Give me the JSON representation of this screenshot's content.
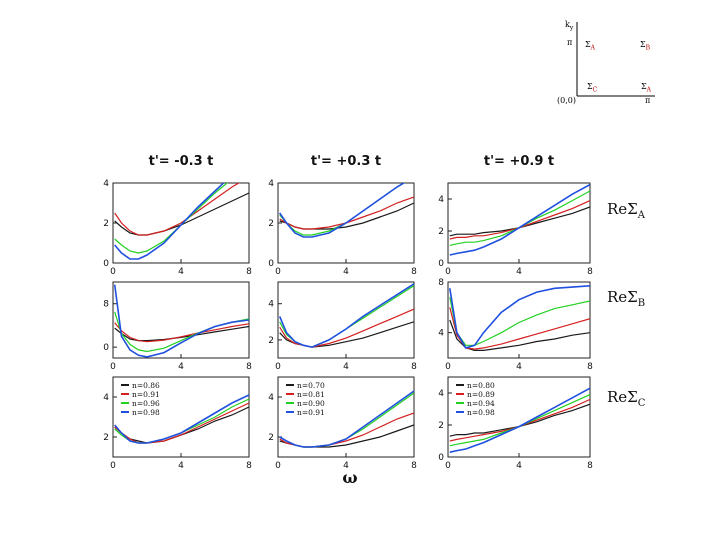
{
  "colors": {
    "black": "#1a1a1a",
    "red": "#d42020",
    "green": "#22d022",
    "blue": "#2050e0"
  },
  "inset": {
    "ky_label": "k",
    "ky_sub": "y",
    "pi_left": "π",
    "pi_bottom": "π",
    "origin": "(0,0)",
    "sigma_a": "Σ",
    "sigma_a_sub": "A",
    "sigma_b": "Σ",
    "sigma_b_sub": "B",
    "sigma_c": "Σ",
    "sigma_c_sub": "C",
    "sigma_a2": "Σ",
    "sigma_a2_sub": "A"
  },
  "columns": [
    "t'= -0.3 t",
    "t'= +0.3 t",
    "t'= +0.9 t"
  ],
  "rows": [
    "ReΣ_A",
    "ReΣ_B",
    "ReΣ_C"
  ],
  "row_label_main": "ReΣ",
  "row_label_subs": [
    "A",
    "B",
    "C"
  ],
  "xlabel": "ω",
  "legends": [
    [
      "n=0.86",
      "n=0.91",
      "n=0.96",
      "n=0.98"
    ],
    [
      "n=0.70",
      "n=0.81",
      "n=0.90",
      "n=0.91"
    ],
    [
      "n=0.80",
      "n=0.89",
      "n=0.94",
      "n=0.98"
    ]
  ],
  "chart_data": [
    {
      "type": "line",
      "panel": "row A, col 1",
      "xlim": [
        0,
        8
      ],
      "ylim": [
        0,
        4
      ],
      "xticks": [
        0,
        4,
        8
      ],
      "yticks": [
        0,
        2,
        4
      ],
      "x": [
        0.1,
        0.5,
        1,
        1.5,
        2,
        3,
        4,
        5,
        6,
        7,
        8
      ],
      "series": [
        {
          "values": [
            2.1,
            1.8,
            1.5,
            1.4,
            1.4,
            1.6,
            1.9,
            2.3,
            2.7,
            3.1,
            3.5
          ]
        },
        {
          "values": [
            2.5,
            2.0,
            1.6,
            1.4,
            1.4,
            1.6,
            2.0,
            2.6,
            3.2,
            3.8,
            4.3
          ]
        },
        {
          "values": [
            1.2,
            0.9,
            0.6,
            0.5,
            0.6,
            1.1,
            1.9,
            2.7,
            3.5,
            4.2,
            4.9
          ]
        },
        {
          "values": [
            0.9,
            0.5,
            0.2,
            0.2,
            0.4,
            1.0,
            1.9,
            2.8,
            3.6,
            4.4,
            5.1
          ]
        }
      ]
    },
    {
      "type": "line",
      "panel": "row A, col 2",
      "xlim": [
        0,
        8
      ],
      "ylim": [
        0,
        4
      ],
      "xticks": [
        0,
        4,
        8
      ],
      "yticks": [
        0,
        2,
        4
      ],
      "x": [
        0.1,
        0.5,
        1,
        1.5,
        2,
        3,
        4,
        5,
        6,
        7,
        8
      ],
      "series": [
        {
          "values": [
            2.1,
            2.0,
            1.8,
            1.7,
            1.7,
            1.7,
            1.8,
            2.0,
            2.3,
            2.6,
            3.0
          ]
        },
        {
          "values": [
            2.2,
            2.0,
            1.8,
            1.7,
            1.7,
            1.8,
            2.0,
            2.3,
            2.6,
            3.0,
            3.3
          ]
        },
        {
          "values": [
            2.4,
            2.0,
            1.6,
            1.4,
            1.4,
            1.6,
            2.0,
            2.6,
            3.2,
            3.8,
            4.3
          ]
        },
        {
          "values": [
            2.5,
            2.0,
            1.5,
            1.3,
            1.3,
            1.5,
            2.0,
            2.6,
            3.2,
            3.8,
            4.3
          ]
        }
      ]
    },
    {
      "type": "line",
      "panel": "row A, col 3",
      "xlim": [
        0,
        8
      ],
      "ylim": [
        0,
        5
      ],
      "xticks": [
        0,
        4,
        8
      ],
      "yticks": [
        0,
        2,
        4
      ],
      "x": [
        0.1,
        0.5,
        1,
        1.5,
        2,
        3,
        4,
        5,
        6,
        7,
        8
      ],
      "series": [
        {
          "values": [
            1.7,
            1.8,
            1.8,
            1.8,
            1.9,
            2.0,
            2.2,
            2.5,
            2.8,
            3.1,
            3.5
          ]
        },
        {
          "values": [
            1.5,
            1.6,
            1.6,
            1.7,
            1.7,
            1.9,
            2.2,
            2.6,
            3.0,
            3.4,
            3.9
          ]
        },
        {
          "values": [
            1.1,
            1.2,
            1.3,
            1.3,
            1.4,
            1.7,
            2.2,
            2.8,
            3.3,
            3.9,
            4.5
          ]
        },
        {
          "values": [
            0.5,
            0.6,
            0.7,
            0.8,
            1.0,
            1.5,
            2.2,
            2.9,
            3.6,
            4.3,
            4.9
          ]
        }
      ]
    },
    {
      "type": "line",
      "panel": "row B, col 1",
      "xlim": [
        0,
        8
      ],
      "ylim": [
        -2,
        12
      ],
      "xticks": [
        0,
        4,
        8
      ],
      "yticks": [
        0,
        8
      ],
      "x": [
        0.1,
        0.5,
        1,
        1.5,
        2,
        3,
        4,
        5,
        6,
        7,
        8
      ],
      "series": [
        {
          "values": [
            3.5,
            2.5,
            1.5,
            1.2,
            1.2,
            1.4,
            1.8,
            2.3,
            2.8,
            3.3,
            3.8
          ]
        },
        {
          "values": [
            4.5,
            3.0,
            1.8,
            1.2,
            1.0,
            1.3,
            1.9,
            2.6,
            3.2,
            3.8,
            4.3
          ]
        },
        {
          "values": [
            6.5,
            2.5,
            0.5,
            -0.5,
            -0.8,
            -0.2,
            1.2,
            2.6,
            3.8,
            4.6,
            5.2
          ]
        },
        {
          "values": [
            11.5,
            2.0,
            -0.5,
            -1.5,
            -1.8,
            -1.0,
            0.8,
            2.5,
            3.8,
            4.6,
            5.0
          ]
        }
      ]
    },
    {
      "type": "line",
      "panel": "row B, col 2",
      "xlim": [
        0,
        8
      ],
      "ylim": [
        1,
        5.2
      ],
      "xticks": [
        0,
        4,
        8
      ],
      "yticks": [
        2,
        4
      ],
      "x": [
        0.1,
        0.5,
        1,
        1.5,
        2,
        3,
        4,
        5,
        6,
        7,
        8
      ],
      "series": [
        {
          "values": [
            2.4,
            2.0,
            1.8,
            1.7,
            1.6,
            1.7,
            1.9,
            2.1,
            2.4,
            2.7,
            3.0
          ]
        },
        {
          "values": [
            2.7,
            2.1,
            1.8,
            1.7,
            1.6,
            1.8,
            2.1,
            2.5,
            2.9,
            3.3,
            3.7
          ]
        },
        {
          "values": [
            3.0,
            2.3,
            1.9,
            1.7,
            1.6,
            2.0,
            2.6,
            3.2,
            3.8,
            4.4,
            5.0
          ]
        },
        {
          "values": [
            3.3,
            2.4,
            1.9,
            1.7,
            1.6,
            2.0,
            2.6,
            3.3,
            3.9,
            4.5,
            5.1
          ]
        }
      ]
    },
    {
      "type": "line",
      "panel": "row B, col 3",
      "xlim": [
        0,
        8
      ],
      "ylim": [
        2,
        8
      ],
      "xticks": [
        0,
        4,
        8
      ],
      "yticks": [
        4,
        8
      ],
      "x": [
        0.1,
        0.5,
        1,
        1.5,
        2,
        3,
        4,
        5,
        6,
        7,
        8
      ],
      "series": [
        {
          "values": [
            5.0,
            3.5,
            2.8,
            2.6,
            2.6,
            2.8,
            3.0,
            3.3,
            3.5,
            3.8,
            4.0
          ]
        },
        {
          "values": [
            6.0,
            3.8,
            2.8,
            2.7,
            2.8,
            3.1,
            3.5,
            3.9,
            4.3,
            4.7,
            5.1
          ]
        },
        {
          "values": [
            6.8,
            4.0,
            3.0,
            3.0,
            3.3,
            4.0,
            4.8,
            5.4,
            5.9,
            6.2,
            6.5
          ]
        },
        {
          "values": [
            7.5,
            4.0,
            2.8,
            3.0,
            4.0,
            5.6,
            6.6,
            7.2,
            7.5,
            7.6,
            7.7
          ]
        }
      ]
    },
    {
      "type": "line",
      "panel": "row C, col 1",
      "xlim": [
        0,
        8
      ],
      "ylim": [
        1,
        5
      ],
      "xticks": [
        0,
        4,
        8
      ],
      "yticks": [
        2,
        4
      ],
      "x": [
        0.1,
        0.5,
        1,
        1.5,
        2,
        3,
        4,
        5,
        6,
        7,
        8
      ],
      "series": [
        {
          "values": [
            2.5,
            2.2,
            1.9,
            1.8,
            1.7,
            1.8,
            2.1,
            2.4,
            2.8,
            3.1,
            3.5
          ]
        },
        {
          "values": [
            2.5,
            2.2,
            1.9,
            1.7,
            1.7,
            1.8,
            2.1,
            2.5,
            2.9,
            3.3,
            3.7
          ]
        },
        {
          "values": [
            2.4,
            2.1,
            1.8,
            1.7,
            1.7,
            1.9,
            2.2,
            2.6,
            3.0,
            3.5,
            3.9
          ]
        },
        {
          "values": [
            2.6,
            2.2,
            1.8,
            1.7,
            1.7,
            1.9,
            2.2,
            2.7,
            3.2,
            3.7,
            4.1
          ]
        }
      ]
    },
    {
      "type": "line",
      "panel": "row C, col 2",
      "xlim": [
        0,
        8
      ],
      "ylim": [
        1,
        5
      ],
      "xticks": [
        0,
        4,
        8
      ],
      "yticks": [
        2,
        4
      ],
      "x": [
        0.1,
        0.5,
        1,
        1.5,
        2,
        3,
        4,
        5,
        6,
        7,
        8
      ],
      "series": [
        {
          "values": [
            1.8,
            1.7,
            1.6,
            1.5,
            1.5,
            1.5,
            1.6,
            1.8,
            2.0,
            2.3,
            2.6
          ]
        },
        {
          "values": [
            1.9,
            1.7,
            1.6,
            1.5,
            1.5,
            1.6,
            1.8,
            2.1,
            2.5,
            2.9,
            3.2
          ]
        },
        {
          "values": [
            2.0,
            1.8,
            1.6,
            1.5,
            1.5,
            1.6,
            1.9,
            2.4,
            3.0,
            3.6,
            4.2
          ]
        },
        {
          "values": [
            2.0,
            1.8,
            1.6,
            1.5,
            1.5,
            1.6,
            1.9,
            2.5,
            3.1,
            3.7,
            4.3
          ]
        }
      ]
    },
    {
      "type": "line",
      "panel": "row C, col 3",
      "xlim": [
        0,
        8
      ],
      "ylim": [
        0,
        5
      ],
      "xticks": [
        0,
        4,
        8
      ],
      "yticks": [
        0,
        2,
        4
      ],
      "x": [
        0.1,
        0.5,
        1,
        1.5,
        2,
        3,
        4,
        5,
        6,
        7,
        8
      ],
      "series": [
        {
          "values": [
            1.3,
            1.4,
            1.4,
            1.5,
            1.5,
            1.7,
            1.9,
            2.2,
            2.6,
            2.9,
            3.3
          ]
        },
        {
          "values": [
            1.0,
            1.1,
            1.2,
            1.3,
            1.4,
            1.6,
            1.9,
            2.3,
            2.7,
            3.1,
            3.6
          ]
        },
        {
          "values": [
            0.7,
            0.8,
            0.9,
            1.0,
            1.1,
            1.5,
            1.9,
            2.4,
            2.9,
            3.4,
            3.9
          ]
        },
        {
          "values": [
            0.3,
            0.4,
            0.5,
            0.7,
            0.9,
            1.4,
            1.9,
            2.5,
            3.1,
            3.7,
            4.3
          ]
        }
      ]
    }
  ]
}
